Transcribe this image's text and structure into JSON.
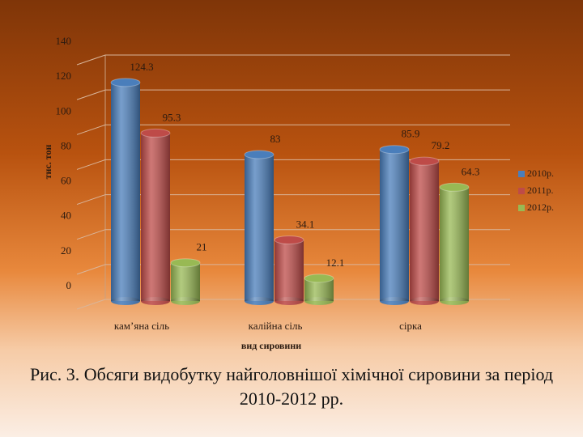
{
  "chart_data": {
    "type": "bar",
    "caption": "Рис. 3. Обсяги видобутку найголовнішої хімічної сировини за період 2010-2012 рр.",
    "y_label": "тис. тон",
    "x_label": "вид сировини",
    "categories": [
      "кам’яна сіль",
      "калійна сіль",
      "сірка"
    ],
    "series": [
      {
        "name": "2010р.",
        "color": "#4a7ebb",
        "values": [
          124.3,
          83,
          85.9
        ]
      },
      {
        "name": "2011р.",
        "color": "#be4b48",
        "values": [
          95.3,
          34.1,
          79.2
        ]
      },
      {
        "name": "2012р.",
        "color": "#98b954",
        "values": [
          21,
          12.1,
          64.3
        ]
      }
    ],
    "ylim": [
      0,
      140
    ],
    "yticks": [
      0,
      20,
      40,
      60,
      80,
      100,
      120,
      140
    ],
    "grid": true,
    "legend": "right"
  }
}
